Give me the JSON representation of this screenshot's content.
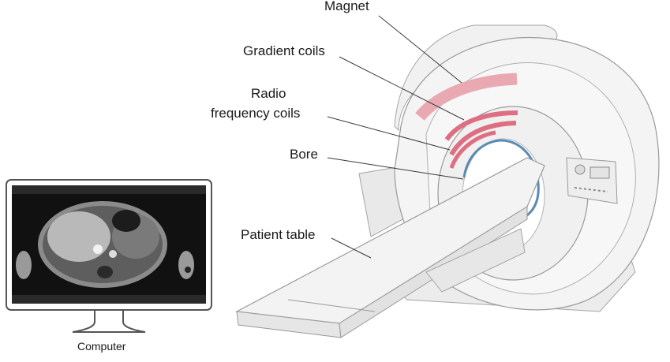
{
  "labels": {
    "magnet": "Magnet",
    "gradient_coils": "Gradient coils",
    "rf_coils_line1": "Radio",
    "rf_coils_line2": "frequency coils",
    "bore": "Bore",
    "patient_table": "Patient table",
    "computer": "Computer"
  },
  "colors": {
    "magnet_arc": "#e8a9b3",
    "gradient_coil_arc": "#de6f82",
    "bore_ring": "#5a8ab5",
    "scanner_body": "#f3f3f3",
    "outline": "#9a9a9a",
    "monitor_frame": "#555555"
  }
}
